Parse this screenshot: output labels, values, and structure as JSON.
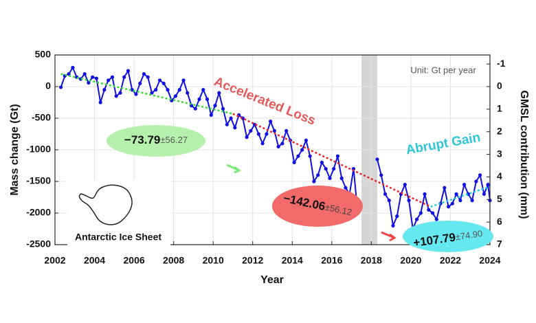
{
  "chart_data": {
    "type": "line",
    "x_label": "Year",
    "y_label": "Mass change (Gt)",
    "y2_label": "GMSL contribution (mm)",
    "xlim": [
      2002,
      2024
    ],
    "xticks": [
      2002,
      2004,
      2006,
      2008,
      2010,
      2012,
      2014,
      2016,
      2018,
      2020,
      2022,
      2024
    ],
    "ylim": [
      -2500,
      500
    ],
    "yticks": [
      500,
      0,
      -500,
      -1000,
      -1500,
      -2000,
      -2500
    ],
    "y2lim": [
      7,
      -1.4
    ],
    "y2ticks": [
      -1,
      0,
      1,
      2,
      3,
      4,
      5,
      6,
      7
    ],
    "grid": true,
    "shaded_span": [
      2017.5,
      2018.3
    ],
    "series": [
      {
        "color": "#1010e0",
        "markers": true,
        "x": [
          2002.3,
          2002.5,
          2002.7,
          2002.9,
          2003.1,
          2003.3,
          2003.5,
          2003.7,
          2003.9,
          2004.1,
          2004.3,
          2004.5,
          2004.7,
          2004.9,
          2005.1,
          2005.3,
          2005.5,
          2005.7,
          2005.9,
          2006.1,
          2006.3,
          2006.5,
          2006.7,
          2006.9,
          2007.1,
          2007.3,
          2007.5,
          2007.7,
          2007.9,
          2008.1,
          2008.3,
          2008.5,
          2008.7,
          2008.9,
          2009.1,
          2009.3,
          2009.5,
          2009.7,
          2009.9,
          2010.1,
          2010.3,
          2010.5,
          2010.7,
          2010.9,
          2011.1,
          2011.3,
          2011.5,
          2011.7,
          2011.9,
          2012.1,
          2012.3,
          2012.5,
          2012.7,
          2012.9,
          2013.1,
          2013.3,
          2013.5,
          2013.7,
          2013.9,
          2014.1,
          2014.3,
          2014.5,
          2014.7,
          2014.9,
          2015.1,
          2015.3,
          2015.5,
          2015.7,
          2015.9,
          2016.1,
          2016.3,
          2016.5,
          2016.7,
          2016.9,
          2017.1,
          2017.3,
          2017.5,
          2018.3,
          2018.5,
          2018.7,
          2018.9,
          2019.1,
          2019.3,
          2019.5,
          2019.7,
          2019.9,
          2020.1,
          2020.3,
          2020.5,
          2020.7,
          2020.9,
          2021.1,
          2021.3,
          2021.5,
          2021.7,
          2021.9,
          2022.1,
          2022.3,
          2022.5,
          2022.7,
          2022.9,
          2023.1,
          2023.3,
          2023.5,
          2023.7,
          2023.9,
          2024.0
        ],
        "values": [
          -10,
          170,
          200,
          300,
          150,
          120,
          200,
          60,
          150,
          130,
          -250,
          -50,
          100,
          150,
          -150,
          -100,
          150,
          250,
          -50,
          -120,
          50,
          200,
          150,
          -100,
          -50,
          100,
          50,
          -50,
          -220,
          -150,
          -50,
          100,
          -100,
          -300,
          -350,
          -200,
          -50,
          -200,
          -450,
          -300,
          -100,
          -350,
          -600,
          -500,
          -650,
          -450,
          -500,
          -800,
          -700,
          -600,
          -750,
          -900,
          -750,
          -550,
          -700,
          -950,
          -900,
          -700,
          -850,
          -1200,
          -1100,
          -1000,
          -850,
          -1100,
          -1500,
          -1400,
          -1200,
          -1300,
          -1450,
          -1300,
          -1100,
          -1450,
          -1600,
          -1700,
          -1300,
          -1950,
          null,
          -1150,
          -1400,
          -1700,
          -1800,
          -2200,
          -2050,
          -1700,
          -1550,
          -1800,
          -2250,
          -2100,
          -2000,
          -1700,
          -1950,
          -2000,
          -2100,
          -1850,
          -1600,
          -1900,
          -1850,
          -1700,
          -1800,
          -1550,
          -1700,
          -1800,
          -1500,
          -1400,
          -1700,
          -1550,
          -1800
        ]
      },
      {
        "color": "#33dd33",
        "dash": true,
        "x": [
          2002.3,
          2011
        ],
        "values": [
          200,
          -430
        ]
      },
      {
        "color": "#ee2222",
        "dash": true,
        "x": [
          2011,
          2021
        ],
        "values": [
          -430,
          -1900
        ]
      },
      {
        "color": "#22ccdd",
        "dash": true,
        "x": [
          2021,
          2024
        ],
        "values": [
          -1900,
          -1580
        ]
      }
    ],
    "annotations": {
      "unit": "Unit: Gt per year",
      "phase1": "Accelerated Loss",
      "phase2": "Abrupt Gain",
      "rate1": "−73.79",
      "err1": "±56.27",
      "rate2": "−142.06",
      "err2": "±56.12",
      "rate3": "+107.79",
      "err3": "±74.90",
      "inset": "Antarctic Ice Sheet"
    }
  }
}
